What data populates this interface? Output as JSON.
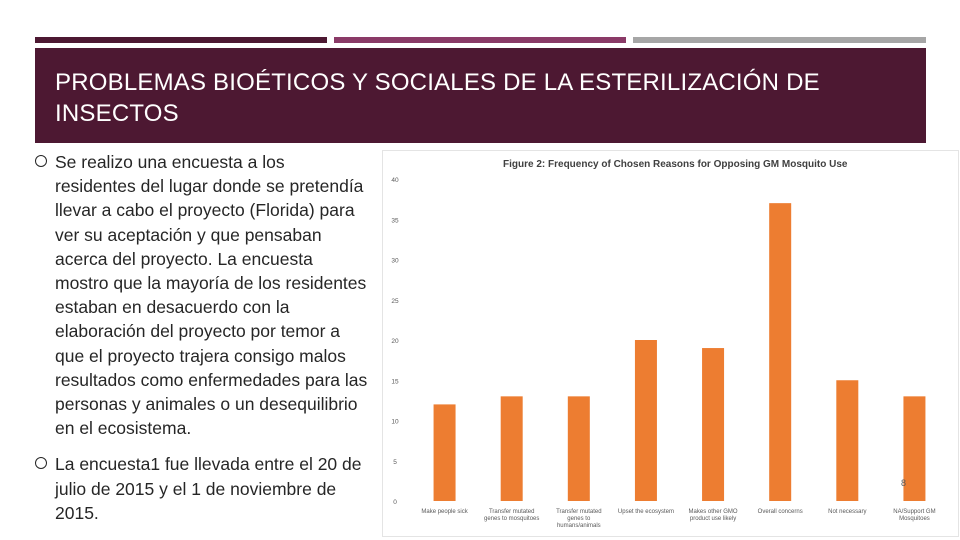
{
  "slide": {
    "title": "PROBLEMAS BIOÉTICOS Y SOCIALES DE LA ESTERILIZACIÓN DE INSECTOS",
    "title_bg": "#4d1832",
    "accent_bars": [
      "#4d1832",
      "#8a3a67",
      "#a6a6a6"
    ],
    "bullets": [
      "Se realizo una encuesta a los residentes del lugar donde se pretendía llevar a cabo el proyecto (Florida) para ver su aceptación y que pensaban acerca del proyecto. La encuesta mostro que la mayoría de los residentes estaban en desacuerdo con la elaboración del proyecto por temor a que el proyecto trajera consigo malos resultados como enfermedades para las personas y animales o un desequilibrio en el ecosistema.",
      "La encuesta1 fue llevada entre el 20 de julio de 2015 y el 1 de noviembre de 2015."
    ],
    "bullet_icon": "hollow-circle-bullet-icon",
    "page_number": "8"
  },
  "chart_data": {
    "type": "bar",
    "title": "Figure 2: Frequency of Chosen Reasons for Opposing GM Mosquito Use",
    "categories": [
      "Make people sick",
      "Transfer mutated genes to mosquitoes",
      "Transfer mutated genes to humans/animals",
      "Upset the ecosystem",
      "Makes other GMO product use likely",
      "Overall concerns",
      "Not necessary",
      "NA/Support GM Mosquitoes"
    ],
    "values": [
      12,
      13,
      13,
      20,
      19,
      37,
      15,
      13
    ],
    "ylim": [
      0,
      40
    ],
    "yticks": [
      0,
      5,
      10,
      15,
      20,
      25,
      30,
      35,
      40
    ],
    "bar_color": "#ed7d31",
    "grid": false,
    "xlabel": "",
    "ylabel": ""
  }
}
